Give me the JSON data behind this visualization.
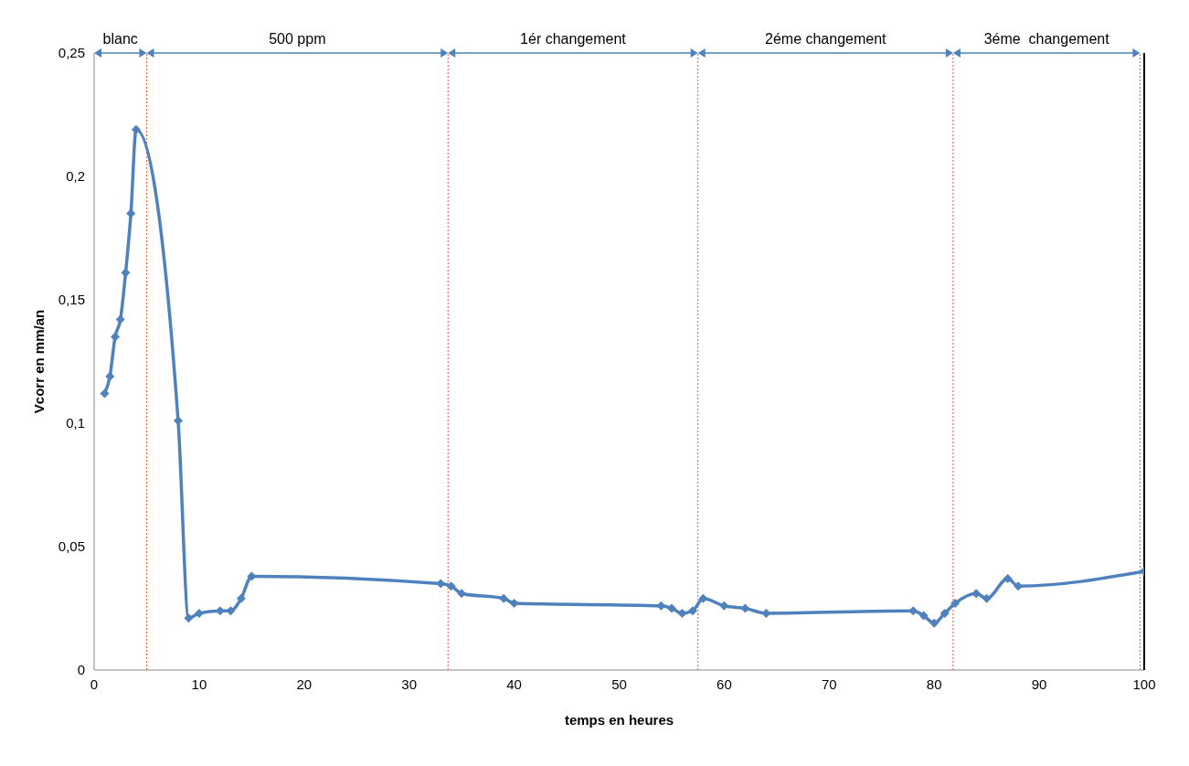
{
  "chart_data": {
    "type": "line",
    "xlabel": "temps en heures",
    "ylabel": "Vcorr en mm/an",
    "x": [
      1,
      1.5,
      2,
      2.5,
      3,
      3.5,
      4,
      8,
      9,
      10,
      12,
      13,
      14,
      15,
      33,
      34,
      35,
      39,
      40,
      54,
      55,
      56,
      57,
      58,
      60,
      62,
      64,
      78,
      79,
      80,
      81,
      82,
      84,
      85,
      87,
      88,
      100
    ],
    "series": [
      {
        "color": "#4f81bd",
        "values": [
          0.112,
          0.119,
          0.135,
          0.142,
          0.161,
          0.185,
          0.219,
          0.101,
          0.021,
          0.023,
          0.024,
          0.024,
          0.029,
          0.038,
          0.035,
          0.034,
          0.031,
          0.029,
          0.027,
          0.026,
          0.025,
          0.023,
          0.024,
          0.029,
          0.026,
          0.025,
          0.023,
          0.024,
          0.022,
          0.019,
          0.023,
          0.027,
          0.031,
          0.029,
          0.037,
          0.034,
          0.04
        ]
      }
    ],
    "marker": "diamond",
    "line_style": "solid",
    "grid": false,
    "legend": false,
    "xlim": [
      0,
      100
    ],
    "xticks": [
      0,
      10,
      20,
      30,
      40,
      50,
      60,
      70,
      80,
      90,
      100
    ],
    "ylim": [
      0,
      0.25
    ],
    "yticks": [
      0,
      {
        "value": 0.05,
        "label": "0,05"
      },
      {
        "value": 0.1,
        "label": "0,1"
      },
      {
        "value": 0.15,
        "label": "0,15"
      },
      {
        "value": 0.2,
        "label": "0,2"
      },
      {
        "value": 0.25,
        "label": "0,25"
      }
    ],
    "ref_lines": [
      {
        "axis": "x",
        "value": 5,
        "color": "#e0603a",
        "line_style": "dotted"
      },
      {
        "axis": "x",
        "value": 33.7,
        "color": "#e0603a",
        "line_style": "dotted"
      },
      {
        "axis": "x",
        "value": 57.5,
        "color": "#e0603a",
        "line_style": "dotted"
      },
      {
        "axis": "x",
        "value": 81.8,
        "color": "#e0603a",
        "line_style": "dotted"
      },
      {
        "axis": "x",
        "value": 99.6,
        "color": "#e0603a",
        "line_style": "dotted"
      }
    ],
    "annotations": [
      "blanc",
      "500 ppm",
      "1ér changement",
      "2éme changement",
      "3éme  changement"
    ]
  }
}
